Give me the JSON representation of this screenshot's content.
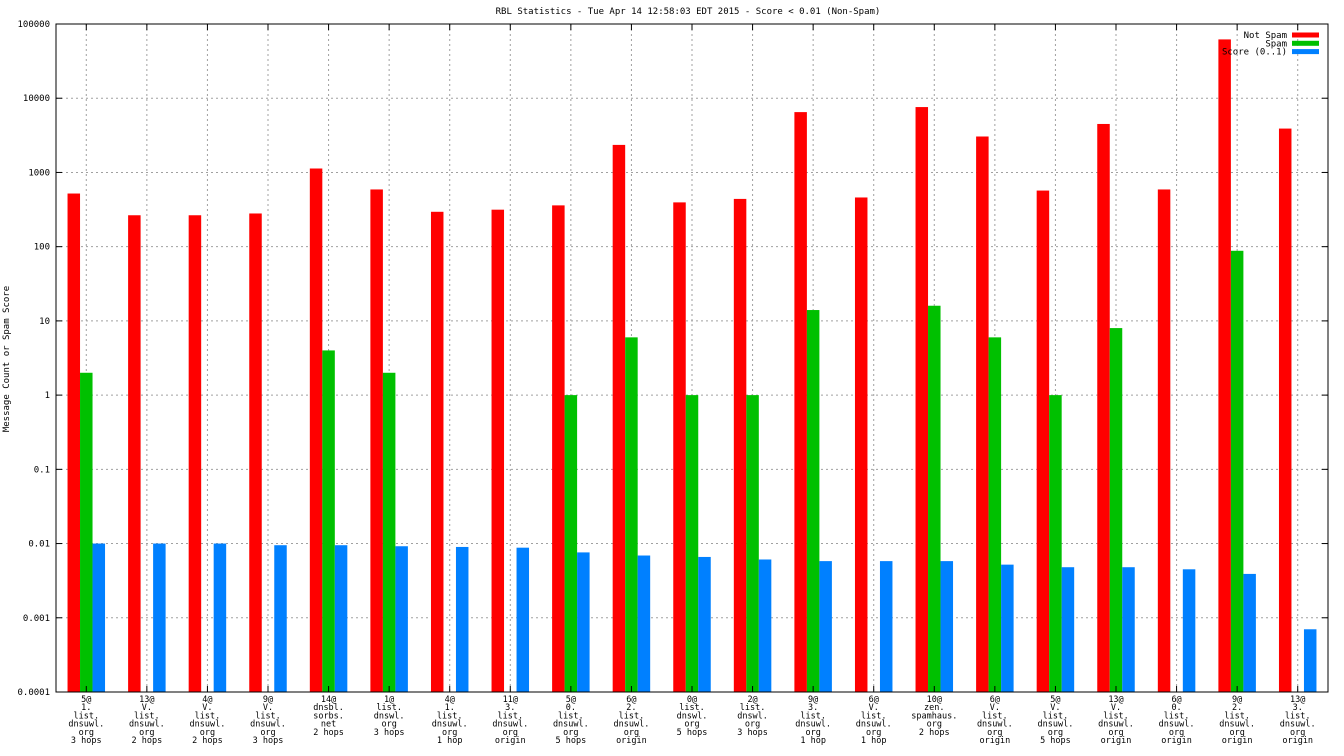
{
  "chart_data": {
    "type": "bar",
    "title": "RBL Statistics - Tue Apr 14 12:58:03 EDT 2015 - Score < 0.01 (Non-Spam)",
    "xlabel": "",
    "ylabel": "Message Count or Spam Score",
    "yscale": "log",
    "ylim": [
      0.0001,
      100000
    ],
    "yticks": [
      "0.0001",
      "0.001",
      "0.01",
      "0.1",
      "1",
      "10",
      "100",
      "1000",
      "10000",
      "100000"
    ],
    "grid": true,
    "legend_position": "top-right",
    "categories": [
      [
        "5@",
        "1.",
        "list.",
        "dnsuwl.",
        "org",
        "3 hops"
      ],
      [
        "13@",
        "V.",
        "list.",
        "dnsuwl.",
        "org",
        "2 hops"
      ],
      [
        "4@",
        "V.",
        "list.",
        "dnsuwl.",
        "org",
        "2 hops"
      ],
      [
        "9@",
        "V.",
        "list.",
        "dnsuwl.",
        "org",
        "3 hops"
      ],
      [
        "14@",
        "dnsbl.",
        "sorbs.",
        "net",
        "2 hops"
      ],
      [
        "1@",
        "list.",
        "dnswl.",
        "org",
        "3 hops"
      ],
      [
        "4@",
        "1.",
        "list.",
        "dnsuwl.",
        "org",
        "1 hop"
      ],
      [
        "11@",
        "3.",
        "list.",
        "dnsuwl.",
        "org",
        "origin"
      ],
      [
        "5@",
        "0.",
        "list.",
        "dnsuwl.",
        "org",
        "5 hops"
      ],
      [
        "6@",
        "2.",
        "list.",
        "dnsuwl.",
        "org",
        "origin"
      ],
      [
        "0@",
        "list.",
        "dnswl.",
        "org",
        "5 hops"
      ],
      [
        "2@",
        "list.",
        "dnswl.",
        "org",
        "3 hops"
      ],
      [
        "9@",
        "3.",
        "list.",
        "dnsuwl.",
        "org",
        "1 hop"
      ],
      [
        "6@",
        "V.",
        "list.",
        "dnsuwl.",
        "org",
        "1 hop"
      ],
      [
        "10@",
        "zen.",
        "spamhaus.",
        "org",
        "2 hops"
      ],
      [
        "6@",
        "V.",
        "list.",
        "dnsuwl.",
        "org",
        "origin"
      ],
      [
        "5@",
        "V.",
        "list.",
        "dnsuwl.",
        "org",
        "5 hops"
      ],
      [
        "13@",
        "V.",
        "list.",
        "dnsuwl.",
        "org",
        "origin"
      ],
      [
        "6@",
        "0.",
        "list.",
        "dnsuwl.",
        "org",
        "origin"
      ],
      [
        "9@",
        "2.",
        "list.",
        "dnsuwl.",
        "org",
        "origin"
      ],
      [
        "13@",
        "3.",
        "list.",
        "dnsuwl.",
        "org",
        "origin"
      ]
    ],
    "series": [
      {
        "name": "Not Spam",
        "color": "#ff0000",
        "values": [
          520,
          265,
          265,
          280,
          1130,
          590,
          295,
          315,
          360,
          2350,
          395,
          440,
          6500,
          460,
          7600,
          3050,
          570,
          4500,
          590,
          62000,
          3900
        ]
      },
      {
        "name": "Spam",
        "color": "#00c000",
        "values": [
          2,
          null,
          null,
          null,
          4,
          2,
          null,
          null,
          1,
          6,
          1,
          1,
          14,
          null,
          16,
          6,
          1,
          8,
          null,
          88,
          null
        ]
      },
      {
        "name": "Score (0..1)",
        "color": "#0080ff",
        "values": [
          0.01,
          0.01,
          0.01,
          0.0095,
          0.0095,
          0.0092,
          0.009,
          0.0088,
          0.0076,
          0.0069,
          0.0066,
          0.0061,
          0.0058,
          0.0058,
          0.0058,
          0.0052,
          0.0048,
          0.0048,
          0.0045,
          0.0039,
          0.0007
        ]
      }
    ]
  }
}
